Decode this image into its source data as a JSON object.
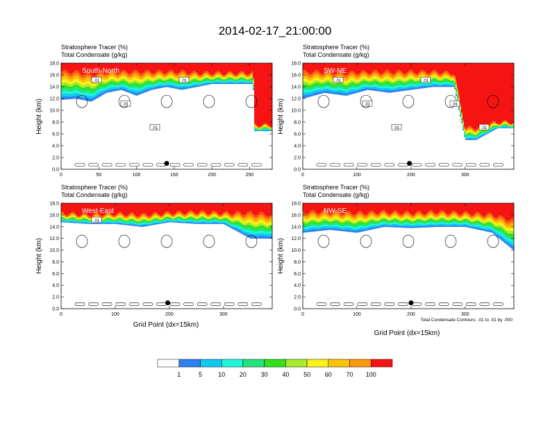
{
  "title": "2014-02-17_21:00:00",
  "panel_header": {
    "line1": "Stratosphere Tracer   (%)",
    "line2": "Total Condensate   (g/kg)"
  },
  "ylabel": "Height (km)",
  "xlabel": "Grid Point (dx=15km)",
  "contour_note": "Total Condensate Contours: .01 to .01 by .000",
  "colors": {
    "white": "#ffffff",
    "blue": "#2e7ff0",
    "cyan": "#11c8f2",
    "aqua": "#1ff5d8",
    "green1": "#22e37c",
    "green2": "#33e11b",
    "lime": "#a8ec2e",
    "yellow": "#fbf319",
    "gold": "#fcc30a",
    "orange": "#fb9a0c",
    "redorange": "#fa5a12",
    "red": "#f51412"
  },
  "colorbar": {
    "labels": [
      "1",
      "5",
      "10",
      "20",
      "30",
      "40",
      "50",
      "60",
      "70",
      "100"
    ],
    "colors": [
      "#ffffff",
      "#2e7ff0",
      "#11c8f2",
      "#1ff5d8",
      "#22e37c",
      "#33e11b",
      "#a8ec2e",
      "#fbf319",
      "#fcc30a",
      "#fb9a0c",
      "#f51412"
    ]
  },
  "chart_data": [
    {
      "type": "heatmap",
      "label": "South-North",
      "ylim": [
        0,
        18
      ],
      "xlim": [
        0,
        280
      ],
      "xticks": [
        0,
        50,
        100,
        150,
        200,
        250
      ],
      "yticks": [
        "0.0",
        "2.0",
        "4.0",
        "6.0",
        "8.0",
        "10.0",
        "12.0",
        "14.0",
        "16.0",
        "18.0"
      ],
      "tracer_profile": {
        "x": [
          0,
          20,
          40,
          60,
          80,
          100,
          120,
          140,
          160,
          180,
          200,
          220,
          240,
          255,
          256,
          280
        ],
        "red_base_km": [
          16.5,
          16.5,
          16.0,
          16.5,
          16.5,
          16.5,
          16.5,
          16.5,
          16.5,
          16.3,
          16.3,
          16.3,
          16.3,
          16.3,
          7.5,
          7.5
        ],
        "blue_base_km": [
          11.8,
          12.0,
          11.5,
          13.0,
          13.5,
          12.5,
          13.5,
          14.0,
          13.5,
          14.0,
          14.5,
          14.5,
          14.5,
          14.5,
          6.5,
          6.5
        ]
      },
      "contour_labels": [
        ".01",
        ".01",
        ".01",
        ".01"
      ],
      "marker": {
        "x": 140,
        "y_km": 1.0
      }
    },
    {
      "type": "heatmap",
      "label": "SW-NE",
      "ylim": [
        0,
        18
      ],
      "xlim": [
        0,
        390
      ],
      "xticks": [
        0,
        100,
        200,
        300
      ],
      "yticks": [
        "0.0",
        "2.0",
        "4.0",
        "6.0",
        "8.0",
        "10.0",
        "12.0",
        "14.0",
        "16.0",
        "18.0"
      ],
      "tracer_profile": {
        "x": [
          0,
          40,
          80,
          120,
          160,
          200,
          240,
          280,
          300,
          320,
          340,
          360,
          390
        ],
        "red_base_km": [
          16.5,
          16.5,
          16.3,
          16.5,
          16.5,
          16.5,
          16.5,
          16.3,
          7.0,
          7.0,
          7.5,
          8.0,
          8.0
        ],
        "blue_base_km": [
          12.0,
          13.0,
          12.5,
          13.5,
          13.0,
          13.5,
          14.0,
          14.0,
          5.0,
          5.0,
          6.0,
          7.0,
          7.0
        ]
      },
      "contour_labels": [
        ".01",
        ".01",
        ".01",
        ".01",
        ".01",
        ".01"
      ],
      "marker": {
        "x": 197,
        "y_km": 1.0
      }
    },
    {
      "type": "heatmap",
      "label": "West-East",
      "ylim": [
        0,
        18
      ],
      "xlim": [
        0,
        390
      ],
      "xticks": [
        0,
        100,
        200,
        300
      ],
      "yticks": [
        "0.0",
        "2.0",
        "4.0",
        "6.0",
        "8.0",
        "10.0",
        "12.0",
        "14.0",
        "16.0",
        "18.0"
      ],
      "tracer_profile": {
        "x": [
          0,
          50,
          100,
          150,
          200,
          250,
          300,
          350,
          390
        ],
        "red_base_km": [
          16.3,
          16.0,
          16.2,
          16.0,
          16.3,
          16.5,
          16.3,
          16.3,
          16.0
        ],
        "blue_base_km": [
          14.8,
          14.5,
          14.5,
          14.0,
          14.8,
          14.5,
          14.5,
          12.0,
          12.0
        ]
      },
      "contour_labels": [
        ".01"
      ],
      "marker": {
        "x": 197,
        "y_km": 1.0
      }
    },
    {
      "type": "heatmap",
      "label": "NW-SE",
      "ylim": [
        0,
        18
      ],
      "xlim": [
        0,
        390
      ],
      "xticks": [
        0,
        100,
        200,
        300
      ],
      "yticks": [
        "0.0",
        "2.0",
        "4.0",
        "6.0",
        "8.0",
        "10.0",
        "12.0",
        "14.0",
        "16.0",
        "18.0"
      ],
      "tracer_profile": {
        "x": [
          0,
          50,
          100,
          150,
          200,
          250,
          300,
          350,
          390
        ],
        "red_base_km": [
          16.5,
          16.5,
          16.3,
          16.5,
          16.3,
          16.5,
          16.3,
          16.0,
          15.0
        ],
        "blue_base_km": [
          13.0,
          13.5,
          13.0,
          14.0,
          13.8,
          14.0,
          14.0,
          13.0,
          10.0
        ]
      },
      "contour_labels": [],
      "marker": {
        "x": 200,
        "y_km": 1.0
      }
    }
  ]
}
